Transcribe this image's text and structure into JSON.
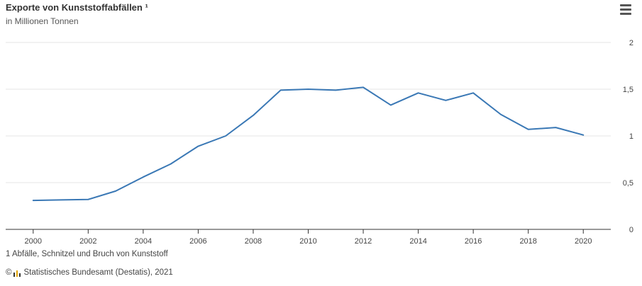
{
  "header": {
    "title": "Exporte von Kunststoffabfällen ¹",
    "subtitle": "in Millionen Tonnen"
  },
  "menu": {
    "icon": "hamburger-menu-icon"
  },
  "footer": {
    "footnote": "1 Abfälle, Schnitzel und Bruch von Kunststoff",
    "copyright": "©",
    "source_logo_icon": "destatis-logo-icon",
    "source": "Statistisches Bundesamt (Destatis), 2021"
  },
  "colors": {
    "line": "#3a78b5",
    "grid": "#e6e6e6",
    "axis": "#333333"
  },
  "chart_data": {
    "type": "line",
    "title": "Exporte von Kunststoffabfällen ¹",
    "subtitle": "in Millionen Tonnen",
    "xlabel": "",
    "ylabel": "",
    "x": [
      2000,
      2001,
      2002,
      2003,
      2004,
      2005,
      2006,
      2007,
      2008,
      2009,
      2010,
      2011,
      2012,
      2013,
      2014,
      2015,
      2016,
      2017,
      2018,
      2019,
      2020
    ],
    "series": [
      {
        "values": [
          0.31,
          0.315,
          0.32,
          0.41,
          0.56,
          0.7,
          0.89,
          1.0,
          1.22,
          1.49,
          1.5,
          1.49,
          1.52,
          1.33,
          1.46,
          1.38,
          1.46,
          1.23,
          1.07,
          1.09,
          1.01
        ]
      }
    ],
    "xlim": [
      1999,
      2021
    ],
    "ylim": [
      0,
      2
    ],
    "x_ticks": [
      "2000",
      "2002",
      "2004",
      "2006",
      "2008",
      "2010",
      "2012",
      "2014",
      "2016",
      "2018",
      "2020"
    ],
    "y_ticks": [
      {
        "value": 0,
        "label": "0"
      },
      {
        "value": 0.5,
        "label": "0,5"
      },
      {
        "value": 1,
        "label": "1"
      },
      {
        "value": 1.5,
        "label": "1,5"
      },
      {
        "value": 2,
        "label": "2"
      }
    ],
    "grid": true,
    "y_axis_position": "right",
    "legend": "none"
  }
}
